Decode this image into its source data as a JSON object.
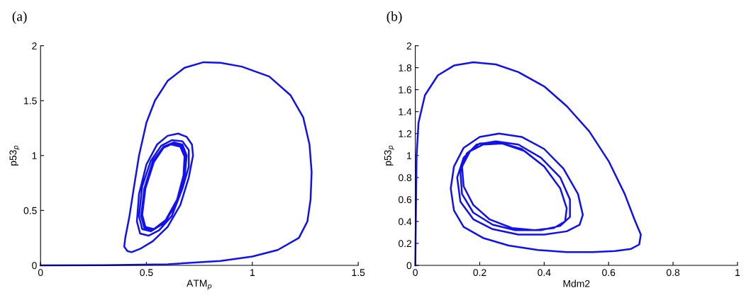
{
  "chart_data": [
    {
      "type": "line",
      "title": "(a)",
      "xlabel": "ATM$_{p}$",
      "ylabel": "p53$_{p}$",
      "xlim": [
        0,
        1.5
      ],
      "ylim": [
        0,
        2
      ],
      "xticks": [
        0,
        0.5,
        1,
        1.5
      ],
      "yticks": [
        0,
        0.5,
        1,
        1.5,
        2
      ],
      "grid": false,
      "series": [
        {
          "color": "#1010f0",
          "x": [
            0,
            0.3,
            0.6,
            0.85,
            1.0,
            1.12,
            1.22,
            1.26,
            1.275,
            1.28,
            1.27,
            1.24,
            1.18,
            1.08,
            0.95,
            0.85,
            0.77,
            0.68,
            0.6,
            0.54,
            0.5,
            0.465,
            0.44,
            0.42,
            0.4,
            0.395,
            0.41,
            0.43,
            0.47,
            0.53,
            0.6,
            0.66,
            0.7,
            0.72,
            0.715,
            0.69,
            0.65,
            0.6,
            0.55,
            0.5,
            0.465,
            0.455,
            0.47,
            0.51,
            0.56,
            0.62,
            0.67,
            0.7,
            0.7,
            0.67,
            0.62,
            0.57,
            0.52,
            0.48,
            0.465,
            0.48,
            0.52,
            0.58,
            0.64,
            0.68,
            0.69,
            0.67,
            0.63,
            0.58,
            0.53,
            0.49,
            0.475,
            0.49,
            0.53,
            0.59,
            0.65,
            0.68,
            0.685,
            0.665,
            0.625,
            0.58,
            0.535,
            0.495,
            0.48,
            0.495,
            0.535,
            0.59,
            0.645,
            0.675,
            0.68,
            0.66,
            0.62
          ],
          "values": [
            0,
            0.002,
            0.01,
            0.04,
            0.08,
            0.14,
            0.25,
            0.4,
            0.6,
            0.85,
            1.1,
            1.35,
            1.55,
            1.72,
            1.81,
            1.845,
            1.85,
            1.8,
            1.68,
            1.5,
            1.3,
            1.0,
            0.7,
            0.45,
            0.25,
            0.17,
            0.13,
            0.12,
            0.15,
            0.22,
            0.35,
            0.55,
            0.8,
            1.0,
            1.1,
            1.17,
            1.2,
            1.18,
            1.1,
            0.92,
            0.65,
            0.4,
            0.29,
            0.27,
            0.32,
            0.45,
            0.7,
            0.9,
            1.05,
            1.13,
            1.14,
            1.09,
            0.95,
            0.72,
            0.45,
            0.33,
            0.31,
            0.38,
            0.55,
            0.8,
            1.0,
            1.1,
            1.12,
            1.08,
            0.95,
            0.7,
            0.45,
            0.34,
            0.32,
            0.4,
            0.6,
            0.82,
            1.0,
            1.09,
            1.11,
            1.07,
            0.94,
            0.7,
            0.46,
            0.35,
            0.33,
            0.41,
            0.6,
            0.82,
            0.99,
            1.08,
            1.1
          ]
        }
      ]
    },
    {
      "type": "line",
      "title": "(b)",
      "xlabel": "Mdm2",
      "ylabel": "p53$_{p}$",
      "xlim": [
        0,
        1
      ],
      "ylim": [
        0,
        2
      ],
      "xticks": [
        0,
        0.2,
        0.4,
        0.6,
        0.8,
        1
      ],
      "yticks": [
        0,
        0.2,
        0.4,
        0.6,
        0.8,
        1,
        1.2,
        1.4,
        1.6,
        1.8,
        2
      ],
      "grid": false,
      "series": [
        {
          "color": "#1010f0",
          "x": [
            0,
            0.002,
            0.004,
            0.01,
            0.03,
            0.07,
            0.12,
            0.18,
            0.25,
            0.32,
            0.4,
            0.47,
            0.54,
            0.6,
            0.65,
            0.68,
            0.7,
            0.695,
            0.67,
            0.62,
            0.55,
            0.47,
            0.38,
            0.29,
            0.21,
            0.15,
            0.12,
            0.11,
            0.12,
            0.15,
            0.2,
            0.26,
            0.33,
            0.4,
            0.46,
            0.505,
            0.52,
            0.51,
            0.47,
            0.4,
            0.32,
            0.24,
            0.18,
            0.14,
            0.13,
            0.15,
            0.19,
            0.25,
            0.32,
            0.39,
            0.45,
            0.48,
            0.48,
            0.45,
            0.39,
            0.31,
            0.24,
            0.18,
            0.145,
            0.14,
            0.16,
            0.2,
            0.26,
            0.33,
            0.4,
            0.45,
            0.47,
            0.465,
            0.43,
            0.37,
            0.3,
            0.23,
            0.18,
            0.15,
            0.145,
            0.17,
            0.21,
            0.27,
            0.34,
            0.4
          ],
          "values": [
            0,
            0.5,
            1.0,
            1.3,
            1.55,
            1.73,
            1.82,
            1.85,
            1.83,
            1.76,
            1.63,
            1.45,
            1.22,
            0.95,
            0.65,
            0.42,
            0.28,
            0.19,
            0.15,
            0.13,
            0.12,
            0.12,
            0.14,
            0.18,
            0.25,
            0.35,
            0.5,
            0.7,
            0.9,
            1.07,
            1.17,
            1.2,
            1.17,
            1.06,
            0.88,
            0.65,
            0.46,
            0.37,
            0.31,
            0.28,
            0.28,
            0.33,
            0.42,
            0.58,
            0.8,
            0.98,
            1.1,
            1.13,
            1.1,
            0.98,
            0.8,
            0.6,
            0.44,
            0.36,
            0.32,
            0.32,
            0.37,
            0.48,
            0.65,
            0.85,
            1.02,
            1.11,
            1.12,
            1.06,
            0.9,
            0.7,
            0.52,
            0.4,
            0.34,
            0.32,
            0.34,
            0.42,
            0.55,
            0.72,
            0.9,
            1.04,
            1.1,
            1.11,
            1.04,
            0.9
          ]
        }
      ]
    }
  ]
}
